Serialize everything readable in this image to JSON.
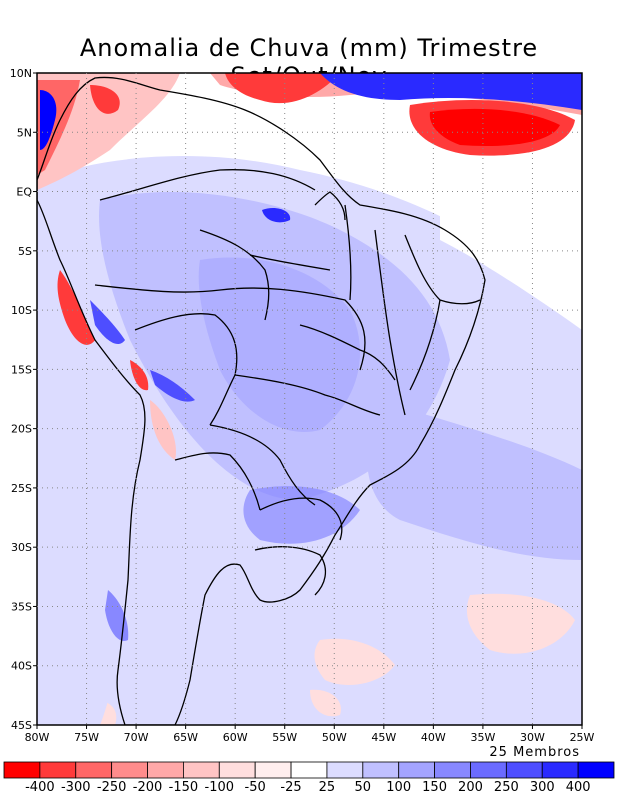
{
  "title": "Anomalia de Chuva (mm) Trimestre Set/Out/Nov",
  "members_label": "25 Membros",
  "lat_labels": [
    "10N",
    "5N",
    "EQ",
    "5S",
    "10S",
    "15S",
    "20S",
    "25S",
    "30S",
    "35S",
    "40S",
    "45S"
  ],
  "lon_labels": [
    "80W",
    "75W",
    "70W",
    "65W",
    "60W",
    "55W",
    "50W",
    "45W",
    "40W",
    "35W",
    "30W",
    "25W"
  ],
  "legend": {
    "labels": [
      "-400",
      "-300",
      "-250",
      "-200",
      "-150",
      "-100",
      "-50",
      "-25",
      "25",
      "50",
      "100",
      "150",
      "200",
      "250",
      "300",
      "400"
    ],
    "colors": [
      "#ff0000",
      "#ff3a3a",
      "#ff6666",
      "#ff8c8c",
      "#ffa8a8",
      "#ffc4c4",
      "#ffdede",
      "#ffeeee",
      "#ffffff",
      "#dcdcff",
      "#c0c0ff",
      "#a4a4ff",
      "#8888ff",
      "#6b6bff",
      "#4e4eff",
      "#2a2aff",
      "#0000ff"
    ]
  }
}
